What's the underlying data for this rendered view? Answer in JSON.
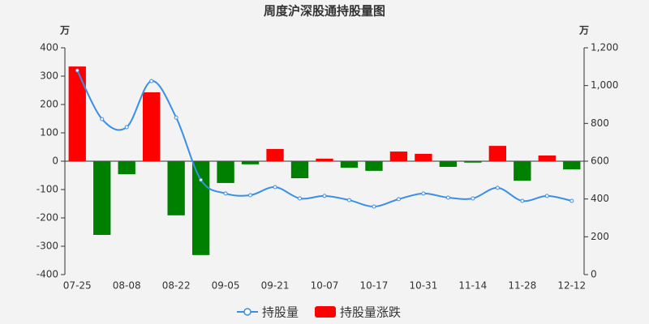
{
  "chart_data": {
    "type": "bar_line",
    "title": "周度沪深股通持股量图",
    "y_label": "万",
    "y2_label": "万",
    "categories": [
      "07-25",
      null,
      "08-08",
      null,
      "08-22",
      null,
      "09-05",
      null,
      "09-21",
      null,
      "10-07",
      null,
      "10-17",
      null,
      "10-31",
      null,
      "11-14",
      null,
      "11-28",
      null,
      "12-12"
    ],
    "ylim": [
      -400,
      400
    ],
    "yticks": [
      -400,
      -300,
      -200,
      -100,
      0,
      100,
      200,
      300,
      400
    ],
    "y2lim": [
      0,
      1200
    ],
    "y2ticks": [
      0,
      200,
      400,
      600,
      800,
      {
        "value": 1000,
        "label": "1,000"
      },
      {
        "value": 1200,
        "label": "1,200"
      }
    ],
    "series": [
      {
        "name": "持股量",
        "kind": "line",
        "axis": "y2",
        "color": "#3a8ee6",
        "values": [
          1080,
          823,
          780,
          1024,
          831,
          501,
          429,
          420,
          463,
          403,
          416,
          394,
          360,
          399,
          429,
          407,
          403,
          459,
          390,
          416,
          390
        ]
      },
      {
        "name": "持股量涨跌",
        "kind": "bar",
        "color": "#ff0000",
        "negative_color": "#008000",
        "values": [
          334,
          -260,
          -46,
          243,
          -191,
          -331,
          -77,
          -11,
          43,
          -60,
          9,
          -23,
          -34,
          34,
          26,
          -20,
          -5,
          54,
          -69,
          20,
          -29
        ]
      }
    ]
  }
}
